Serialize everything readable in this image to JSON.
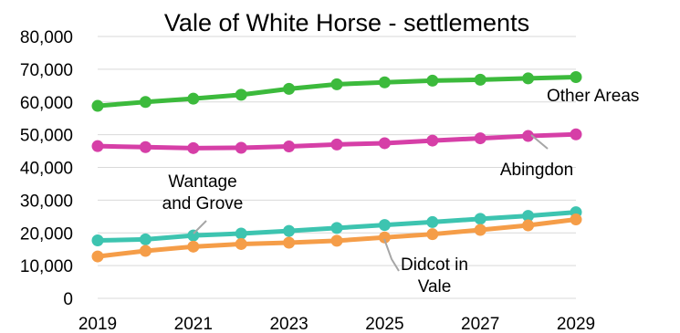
{
  "chart_data": {
    "type": "line",
    "title": "Vale of White Horse - settlements",
    "xlabel": "",
    "ylabel": "",
    "x": [
      2019,
      2020,
      2021,
      2022,
      2023,
      2024,
      2025,
      2026,
      2027,
      2028,
      2029
    ],
    "x_tick_labels": [
      "2019",
      "2021",
      "2023",
      "2025",
      "2027",
      "2029"
    ],
    "y_tick_labels": [
      "0",
      "10,000",
      "20,000",
      "30,000",
      "40,000",
      "50,000",
      "60,000",
      "70,000",
      "80,000"
    ],
    "ylim": [
      0,
      80000
    ],
    "grid": "horizontal",
    "legend": "none",
    "series": [
      {
        "name": "Other Areas",
        "label_lines": [
          "Other Areas"
        ],
        "color": "#3cba3c",
        "values": [
          58800,
          60000,
          61000,
          62200,
          64000,
          65400,
          66000,
          66500,
          66800,
          67200,
          67600
        ]
      },
      {
        "name": "Abingdon",
        "label_lines": [
          "Abingdon"
        ],
        "color": "#d63fa7",
        "values": [
          46500,
          46200,
          45900,
          46000,
          46400,
          47000,
          47400,
          48200,
          48900,
          49600,
          50100
        ]
      },
      {
        "name": "Wantage and Grove",
        "label_lines": [
          "Wantage",
          "and Grove"
        ],
        "color": "#3dc4b0",
        "values": [
          17700,
          18000,
          19200,
          19800,
          20600,
          21500,
          22400,
          23300,
          24300,
          25200,
          26300
        ]
      },
      {
        "name": "Didcot in Vale",
        "label_lines": [
          "Didcot in",
          "Vale"
        ],
        "color": "#f59d48",
        "values": [
          12800,
          14500,
          15800,
          16600,
          17000,
          17600,
          18600,
          19600,
          20900,
          22300,
          24100
        ]
      }
    ]
  }
}
